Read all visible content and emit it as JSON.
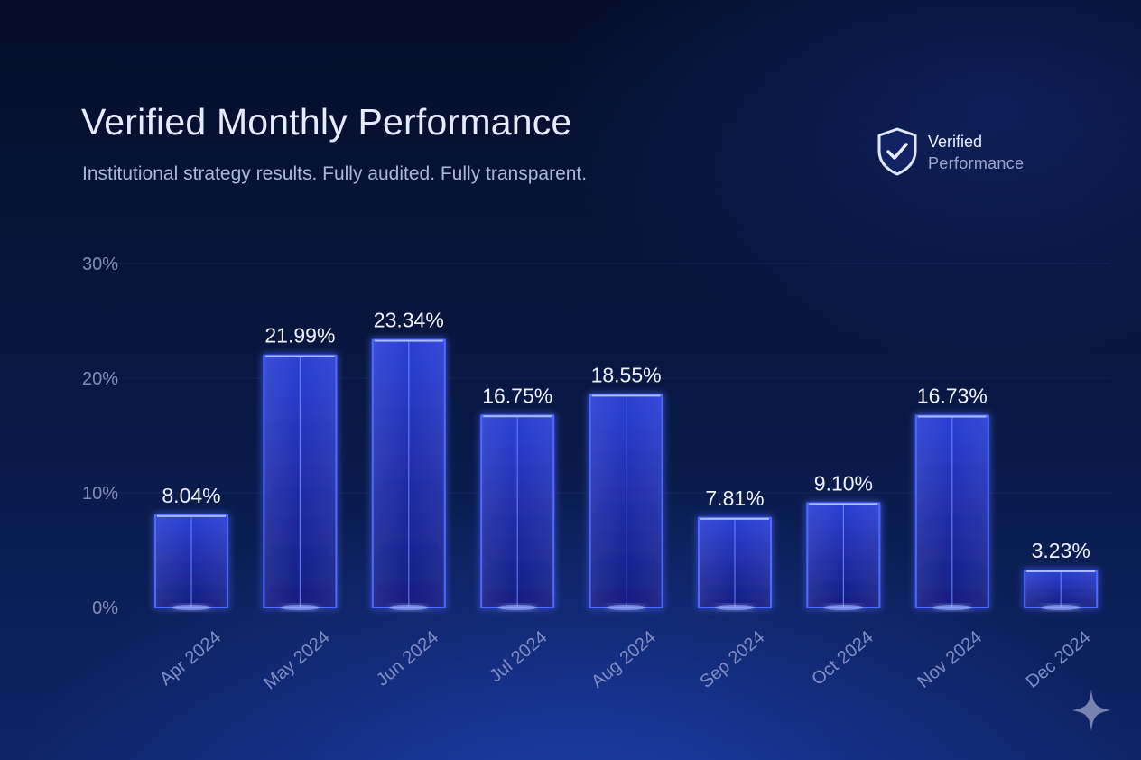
{
  "badge": {
    "line1": "Verified",
    "line2": "Performance",
    "icon": "shield-check-icon"
  },
  "colors": {
    "bar_fill_top": "#2a3fd6",
    "bar_fill_bottom": "#16208a",
    "bar_edge": "#4f6bff",
    "bar_glow": "#6f8cff",
    "grid": "#1f2f66",
    "baseline": "#3f5de8"
  },
  "chart_data": {
    "type": "bar",
    "title": "Verified Monthly Performance",
    "subtitle": "Institutional strategy results. Fully audited. Fully transparent.",
    "categories": [
      "Apr 2024",
      "May 2024",
      "Jun 2024",
      "Jul 2024",
      "Aug 2024",
      "Sep 2024",
      "Oct 2024",
      "Nov 2024",
      "Dec 2024"
    ],
    "values": [
      8.04,
      21.99,
      23.34,
      16.75,
      18.55,
      7.81,
      9.1,
      16.73,
      3.23
    ],
    "value_labels": [
      "8.04%",
      "21.99%",
      "23.34%",
      "16.75%",
      "18.55%",
      "7.81%",
      "9.10%",
      "16.73%",
      "3.23%"
    ],
    "ylim": [
      0,
      30
    ],
    "yticks": [
      0,
      10,
      20,
      30
    ],
    "ytick_labels": [
      "0%",
      "10%",
      "20%",
      "30%"
    ],
    "xlabel": "",
    "ylabel": "",
    "grid": true,
    "legend": "none"
  }
}
